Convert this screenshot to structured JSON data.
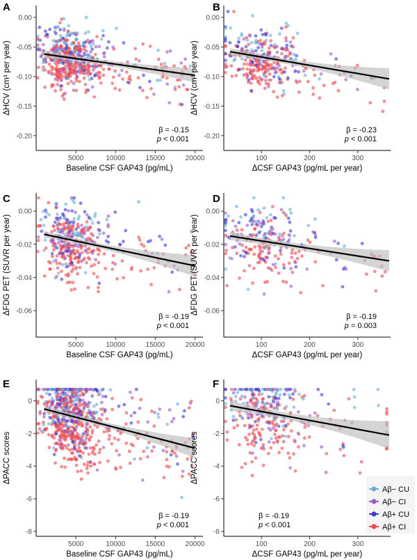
{
  "colors": {
    "neg_cu": "#6baed6",
    "neg_ci": "#9e58c9",
    "pos_cu": "#3b3bdc",
    "pos_ci": "#ee4a4f",
    "ribbon": "#bdbdbd",
    "line": "#000000"
  },
  "legend": {
    "items": [
      {
        "label": "Aβ− CU",
        "color_key": "neg_cu"
      },
      {
        "label": "Aβ− CI",
        "color_key": "neg_ci"
      },
      {
        "label": "Aβ+ CU",
        "color_key": "pos_cu"
      },
      {
        "label": "Aβ+ CI",
        "color_key": "pos_ci"
      }
    ]
  },
  "chart_data": [
    {
      "type": "scatter",
      "panel": "A",
      "xlabel": "Baseline CSF GAP43 (pg/mL)",
      "ylabel": "ΔHCV (cm³ per year)",
      "xlim": [
        0,
        21000
      ],
      "ylim": [
        -0.225,
        0.02
      ],
      "xticks": [
        5000,
        10000,
        15000,
        20000
      ],
      "xtick_labels": [
        "5000",
        "10000",
        "15000",
        "20000"
      ],
      "yticks": [
        0.0,
        -0.05,
        -0.1,
        -0.15,
        -0.2
      ],
      "ytick_labels": [
        "0.00",
        "-0.05",
        "-0.10",
        "-0.15",
        "-0.20"
      ],
      "fit": {
        "x": [
          1000,
          20000
        ],
        "y": [
          -0.062,
          -0.098
        ]
      },
      "ci_half": [
        0.006,
        0.004,
        0.012
      ],
      "beta": "β = -0.15",
      "p_prefix": "p",
      "p_rest": " < 0.001",
      "stat_corner": "right",
      "cloud": {
        "xc": 4200,
        "xs": 1800,
        "xmax": 19500,
        "yc": -0.075,
        "ys": 0.025,
        "ymin": -0.16,
        "ymax": 0.01,
        "tail": 0.33,
        "n": 560
      }
    },
    {
      "type": "scatter",
      "panel": "B",
      "xlabel": "ΔCSF GAP43 (pg/mL per year)",
      "ylabel": "ΔHCV (cm³ per year)",
      "xlim": [
        22,
        368
      ],
      "ylim": [
        -0.225,
        0.02
      ],
      "xticks": [
        100,
        200,
        300
      ],
      "xtick_labels": [
        "100",
        "200",
        "300"
      ],
      "yticks": [
        0.0,
        -0.05,
        -0.1,
        -0.15,
        -0.2
      ],
      "ytick_labels": [
        "0.00",
        "-0.05",
        "-0.10",
        "-0.15",
        "-0.20"
      ],
      "fit": {
        "x": [
          35,
          365
        ],
        "y": [
          -0.058,
          -0.104
        ]
      },
      "ci_half": [
        0.006,
        0.004,
        0.018
      ],
      "beta": "β = -0.23",
      "p_prefix": "p",
      "p_rest": " < 0.001",
      "stat_corner": "right",
      "cloud": {
        "xc": 100,
        "xs": 45,
        "xmax": 355,
        "yc": -0.075,
        "ys": 0.026,
        "ymin": -0.215,
        "ymax": 0.01,
        "tail": 0.25,
        "n": 330
      }
    },
    {
      "type": "scatter",
      "panel": "C",
      "xlabel": "Baseline CSF GAP43 (pg/mL)",
      "ylabel": "ΔFDG PET (SUVR per year)",
      "xlim": [
        0,
        21000
      ],
      "ylim": [
        -0.076,
        0.011
      ],
      "xticks": [
        5000,
        10000,
        15000,
        20000
      ],
      "xtick_labels": [
        "5000",
        "10000",
        "15000",
        "20000"
      ],
      "yticks": [
        0.0,
        -0.02,
        -0.04,
        -0.06
      ],
      "ytick_labels": [
        "0.00",
        "-0.02",
        "-0.04",
        "-0.06"
      ],
      "fit": {
        "x": [
          1000,
          20000
        ],
        "y": [
          -0.014,
          -0.033
        ]
      },
      "ci_half": [
        0.002,
        0.0015,
        0.0065
      ],
      "beta": "β = -0.19",
      "p_prefix": "p",
      "p_rest": " < 0.001",
      "stat_corner": "right",
      "cloud": {
        "xc": 4300,
        "xs": 1900,
        "xmax": 20000,
        "yc": -0.02,
        "ys": 0.011,
        "ymin": -0.073,
        "ymax": 0.008,
        "tail": 0.3,
        "n": 400
      }
    },
    {
      "type": "scatter",
      "panel": "D",
      "xlabel": "ΔCSF GAP43 (pg/mL per year)",
      "ylabel": "ΔFDG PET (SUVR per year)",
      "xlim": [
        22,
        368
      ],
      "ylim": [
        -0.076,
        0.011
      ],
      "xticks": [
        100,
        200,
        300
      ],
      "xtick_labels": [
        "100",
        "200",
        "300"
      ],
      "yticks": [
        0.0,
        -0.02,
        -0.04,
        -0.06
      ],
      "ytick_labels": [
        "0.00",
        "-0.02",
        "-0.04",
        "-0.06"
      ],
      "fit": {
        "x": [
          35,
          365
        ],
        "y": [
          -0.015,
          -0.03
        ]
      },
      "ci_half": [
        0.0025,
        0.0017,
        0.0065
      ],
      "beta": "β = -0.19",
      "p_prefix": "p",
      "p_rest": " = 0.003",
      "stat_corner": "right",
      "cloud": {
        "xc": 100,
        "xs": 45,
        "xmax": 360,
        "yc": -0.02,
        "ys": 0.011,
        "ymin": -0.073,
        "ymax": 0.008,
        "tail": 0.25,
        "n": 250
      }
    },
    {
      "type": "scatter",
      "panel": "E",
      "xlabel": "Baseline CSF GAP43 (pg/mL)",
      "ylabel": "ΔPACC scores",
      "xlim": [
        0,
        21000
      ],
      "ylim": [
        -8.3,
        1.3
      ],
      "xticks": [
        5000,
        10000,
        15000,
        20000
      ],
      "xtick_labels": [
        "5000",
        "10000",
        "15000",
        "20000"
      ],
      "yticks": [
        0,
        -2,
        -4,
        -6,
        -8
      ],
      "ytick_labels": [
        "0",
        "-2",
        "-4",
        "-6",
        "-8"
      ],
      "fit": {
        "x": [
          1000,
          20000
        ],
        "y": [
          -0.5,
          -2.9
        ]
      },
      "ci_half": [
        0.22,
        0.15,
        0.6
      ],
      "beta": "β = -0.19",
      "p_prefix": "p",
      "p_rest": " < 0.001",
      "stat_corner": "right",
      "cloud": {
        "xc": 4300,
        "xs": 1900,
        "xmax": 20000,
        "yc": -0.9,
        "ys": 1.4,
        "ymin": -8.0,
        "ymax": 0.7,
        "tail": 0.3,
        "n": 700
      }
    },
    {
      "type": "scatter",
      "panel": "F",
      "xlabel": "ΔCSF GAP43 (pg/mL per year)",
      "ylabel": "ΔPACC scores",
      "xlim": [
        22,
        368
      ],
      "ylim": [
        -8.3,
        1.3
      ],
      "xticks": [
        100,
        200,
        300
      ],
      "xtick_labels": [
        "100",
        "200",
        "300"
      ],
      "yticks": [
        0,
        -2,
        -4,
        -6,
        -8
      ],
      "ytick_labels": [
        "0",
        "-2",
        "-4",
        "-6",
        "-8"
      ],
      "fit": {
        "x": [
          35,
          365
        ],
        "y": [
          -0.3,
          -2.1
        ]
      },
      "ci_half": [
        0.3,
        0.2,
        0.85
      ],
      "beta": "β = -0.19",
      "p_prefix": "p",
      "p_rest": " < 0.001",
      "stat_corner": "left",
      "cloud": {
        "xc": 100,
        "xs": 45,
        "xmax": 360,
        "yc": -0.9,
        "ys": 1.4,
        "ymin": -8.0,
        "ymax": 0.7,
        "tail": 0.25,
        "n": 330
      }
    }
  ]
}
